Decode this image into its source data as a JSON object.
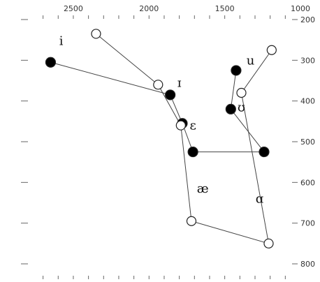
{
  "chart_data": {
    "type": "scatter",
    "title": "",
    "xlabel": "",
    "ylabel": "",
    "x_axis": {
      "reversed": true,
      "range": [
        2700,
        1000
      ],
      "ticks": [
        2500,
        2000,
        1500,
        1000
      ],
      "tick_labels": [
        "2500",
        "2000",
        "1500",
        "1000"
      ],
      "position": "top"
    },
    "y_axis": {
      "reversed": true,
      "range": [
        200,
        800
      ],
      "ticks": [
        200,
        300,
        400,
        500,
        600,
        700,
        800
      ],
      "tick_labels": [
        "200",
        "300",
        "400",
        "500",
        "600",
        "700",
        "800"
      ],
      "position": "right"
    },
    "grid": false,
    "series": [
      {
        "marker": "filled-circle",
        "points": [
          {
            "vowel": "i",
            "f2": 2650,
            "f1": 305
          },
          {
            "vowel": "ɪ",
            "f2": 1860,
            "f1": 385
          },
          {
            "vowel": "ɛ",
            "f2": 1780,
            "f1": 455
          },
          {
            "vowel": "",
            "f2": 1710,
            "f1": 525
          },
          {
            "vowel": "",
            "f2": 1240,
            "f1": 525
          },
          {
            "vowel": "ʊ",
            "f2": 1460,
            "f1": 420
          },
          {
            "vowel": "u",
            "f2": 1425,
            "f1": 325
          }
        ],
        "segments": [
          [
            0,
            1
          ],
          [
            1,
            2
          ],
          [
            2,
            3
          ],
          [
            3,
            4
          ],
          [
            4,
            5
          ],
          [
            5,
            6
          ]
        ]
      },
      {
        "marker": "open-circle",
        "points": [
          {
            "vowel": "",
            "f2": 2350,
            "f1": 235
          },
          {
            "vowel": "",
            "f2": 1940,
            "f1": 360
          },
          {
            "vowel": "",
            "f2": 1790,
            "f1": 460
          },
          {
            "vowel": "æ",
            "f2": 1720,
            "f1": 695
          },
          {
            "vowel": "ɑ",
            "f2": 1210,
            "f1": 750
          },
          {
            "vowel": "",
            "f2": 1390,
            "f1": 380
          },
          {
            "vowel": "",
            "f2": 1190,
            "f1": 275
          }
        ],
        "segments": [
          [
            0,
            1
          ],
          [
            1,
            2
          ],
          [
            2,
            3
          ],
          [
            3,
            4
          ],
          [
            4,
            5
          ],
          [
            5,
            6
          ]
        ]
      }
    ],
    "vowel_labels": [
      {
        "text": "i",
        "f2": 2580,
        "f1": 252
      },
      {
        "text": "ɪ",
        "f2": 1800,
        "f1": 355
      },
      {
        "text": "ɛ",
        "f2": 1710,
        "f1": 460
      },
      {
        "text": "æ",
        "f2": 1645,
        "f1": 615
      },
      {
        "text": "ɑ",
        "f2": 1270,
        "f1": 640
      },
      {
        "text": "ʊ",
        "f2": 1390,
        "f1": 415
      },
      {
        "text": "u",
        "f2": 1330,
        "f1": 300
      }
    ]
  }
}
